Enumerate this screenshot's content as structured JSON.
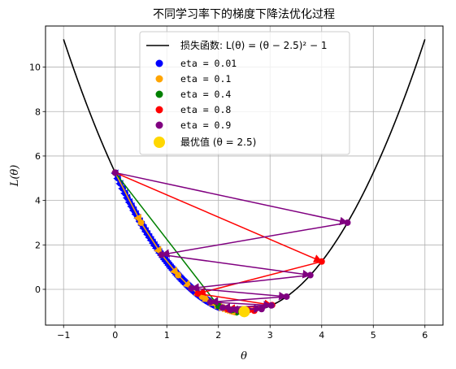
{
  "chart_data": {
    "type": "line",
    "title": "不同学习率下的梯度下降法优化过程",
    "xlabel": "θ",
    "ylabel": "L(θ)",
    "xlim": [
      -1.35,
      6.35
    ],
    "ylim": [
      -1.61,
      11.85
    ],
    "xticks": [
      -1,
      0,
      1,
      2,
      3,
      4,
      5,
      6
    ],
    "yticks": [
      0,
      2,
      4,
      6,
      8,
      10
    ],
    "grid": true,
    "legend_position": "top-center",
    "loss_function": {
      "label": "损失函数: L(θ) = (θ − 2.5)² − 1",
      "color": "#000000",
      "x_range": [
        -1,
        6
      ]
    },
    "series": [
      {
        "name": "eta = 0.01",
        "color": "#0000ff",
        "eta": 0.01,
        "start": 0,
        "steps": 100
      },
      {
        "name": "eta = 0.1",
        "color": "#ffa500",
        "eta": 0.1,
        "start": 0,
        "steps": 20
      },
      {
        "name": "eta = 0.4",
        "color": "#008000",
        "eta": 0.4,
        "start": 0,
        "steps": 5
      },
      {
        "name": "eta = 0.8",
        "color": "#ff0000",
        "eta": 0.8,
        "start": 0,
        "steps": 5
      },
      {
        "name": "eta = 0.9",
        "color": "#800080",
        "eta": 0.9,
        "start": 0,
        "steps": 10
      }
    ],
    "optimum": {
      "label": "最优值 (θ = 2.5)",
      "x": 2.5,
      "y": -1,
      "color": "#ffd700"
    }
  }
}
